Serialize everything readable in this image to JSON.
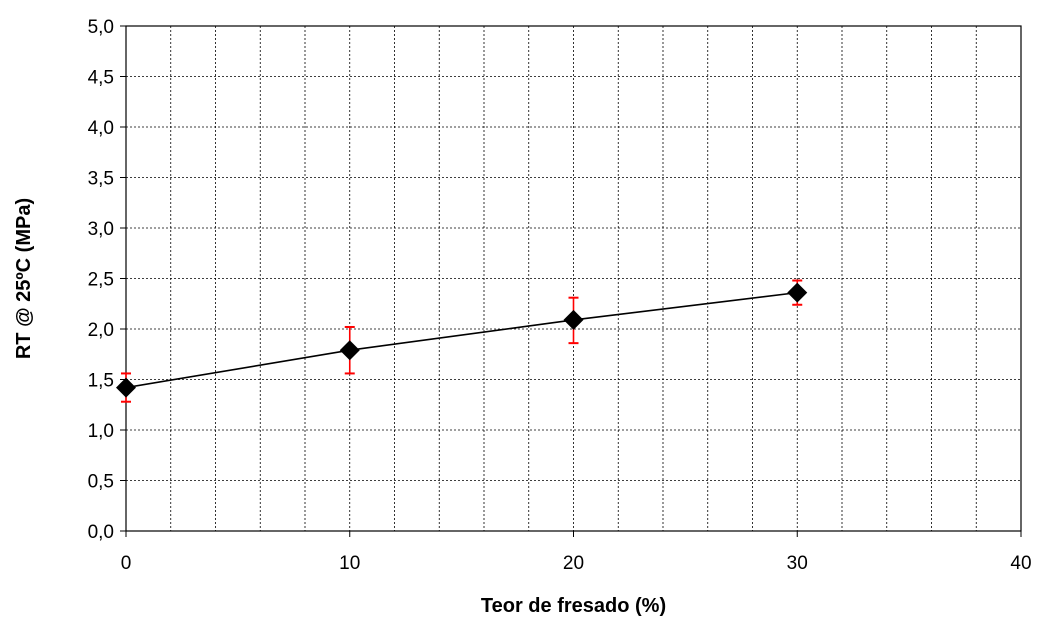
{
  "chart_data": {
    "type": "scatter",
    "title": "",
    "xlabel": "Teor de fresado (%)",
    "ylabel": "RT @ 25ºC (MPa)",
    "xlim": [
      0,
      40
    ],
    "ylim": [
      0,
      5
    ],
    "x_ticks": [
      "0",
      "10",
      "20",
      "30",
      "40"
    ],
    "y_ticks": [
      "0,0",
      "0,5",
      "1,0",
      "1,5",
      "2,0",
      "2,5",
      "3,0",
      "3,5",
      "4,0",
      "4,5",
      "5,0"
    ],
    "x_minor_step": 2,
    "grid": true,
    "legend": "none",
    "series": [
      {
        "x": [
          0,
          10,
          20,
          30
        ],
        "y": [
          1.42,
          1.79,
          2.09,
          2.36
        ],
        "error_low": [
          1.28,
          1.56,
          1.86,
          2.24
        ],
        "error_high": [
          1.56,
          2.02,
          2.31,
          2.48
        ],
        "marker": "diamond",
        "color": "#000000",
        "error_color": "#ff0000"
      }
    ]
  }
}
